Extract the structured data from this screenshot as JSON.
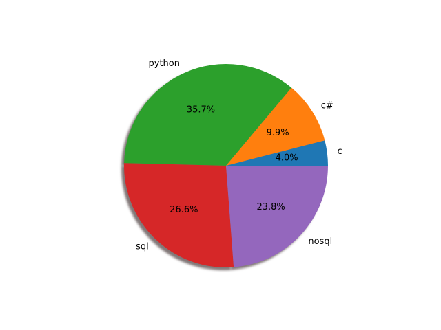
{
  "chart_data": {
    "type": "pie",
    "categories": [
      "c",
      "c#",
      "python",
      "sql",
      "nosql"
    ],
    "values": [
      4.0,
      9.9,
      35.7,
      26.6,
      23.8
    ],
    "percent_labels": [
      "4.0%",
      "9.9%",
      "35.7%",
      "26.6%",
      "23.8%"
    ],
    "colors": [
      "#1f77b4",
      "#ff7f0e",
      "#2ca02c",
      "#d62728",
      "#9467bd"
    ],
    "start_angle_deg": 0,
    "direction": "counterclockwise",
    "shadow": true,
    "title": "",
    "legend": "none"
  }
}
